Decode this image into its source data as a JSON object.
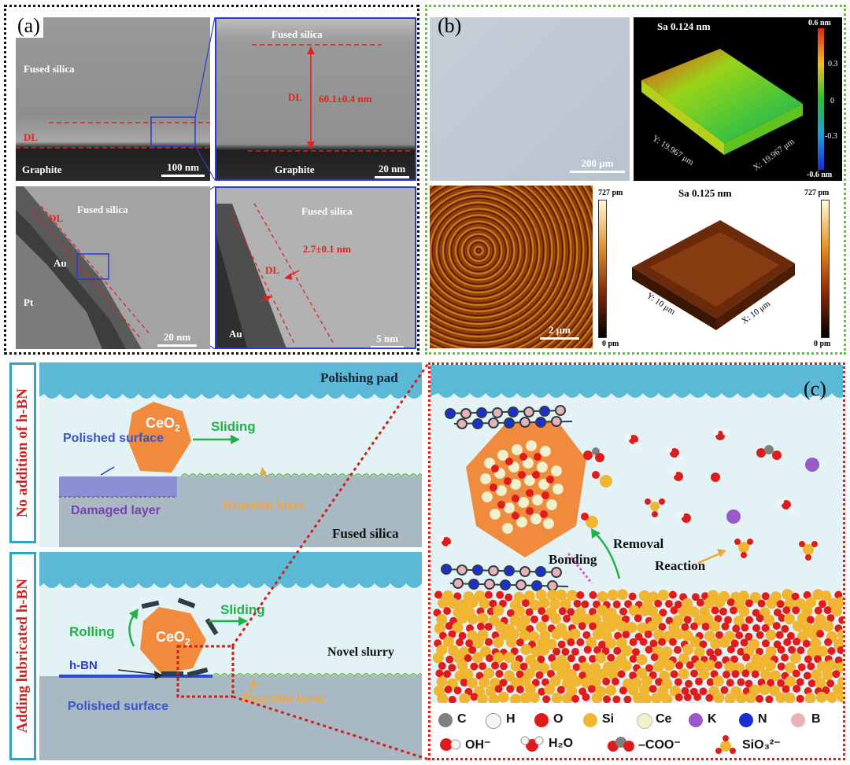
{
  "panel_a": {
    "label": "(a)",
    "top_left": {
      "fused_silica": "Fused silica",
      "dl": "DL",
      "graphite": "Graphite",
      "scale": "100 nm"
    },
    "top_right": {
      "fused_silica": "Fused silica",
      "dl": "DL",
      "thickness": "60.1±0.4 nm",
      "graphite": "Graphite",
      "scale": "20 nm"
    },
    "bottom_left": {
      "dl": "DL",
      "fused_silica": "Fused silica",
      "au": "Au",
      "pt": "Pt",
      "scale": "20 nm"
    },
    "bottom_right": {
      "fused_silica": "Fused silica",
      "thickness": "2.7±0.1 nm",
      "dl": "DL",
      "au": "Au",
      "scale": "5 nm"
    }
  },
  "panel_b": {
    "label": "(b)",
    "optical_scale": "200 μm",
    "afm1": {
      "sa": "Sa 0.124 nm",
      "ticks": [
        "0.6 nm",
        "0.3",
        "0",
        "-0.3",
        "-0.6 nm"
      ],
      "y_axis": "Y: 19.967 μm",
      "x_axis": "X: 19.967 μm"
    },
    "afm2_scale": "2 μm",
    "colorbar1": {
      "top": "727 pm",
      "bottom": "0 pm"
    },
    "afm3": {
      "sa": "Sa 0.125 nm",
      "y_axis": "Y: 10 μm",
      "x_axis": "X: 10 μm"
    },
    "colorbar2": {
      "top": "727 pm",
      "bottom": "0 pm"
    }
  },
  "panel_top_schematic": {
    "side_title": "No addition of h-BN",
    "polishing_pad": "Polishing pad",
    "ceo2": "CeO",
    "ceo2_sub": "2",
    "sliding": "Sliding",
    "polished_surface": "Polished surface",
    "reaction_layer": "Reaction layer",
    "damaged_layer": "Damaged layer",
    "fused_silica": "Fused silica"
  },
  "panel_bottom_schematic": {
    "side_title": "Adding lubricated h-BN",
    "rolling": "Rolling",
    "ceo2": "CeO",
    "ceo2_sub": "2",
    "sliding": "Sliding",
    "novel_slurry": "Novel slurry",
    "hbn": "h-BN",
    "polished_surface": "Polished surface",
    "reaction_layer": "Reaction layer"
  },
  "panel_c": {
    "label": "(c)",
    "removal": "Removal",
    "bonding": "Bonding",
    "reaction": "Reaction",
    "legend_atoms": [
      "C",
      "H",
      "O",
      "Si",
      "Ce",
      "K",
      "N",
      "B"
    ],
    "legend_molecules": [
      "OH⁻",
      "H₂O",
      "–COO⁻",
      "SiO₃²⁻"
    ]
  },
  "colors": {
    "tem_gray": "#8c8c8c",
    "annotation_red": "#e0231c",
    "pad_blue": "#5bb8d6",
    "slurry": "#e3f3f5",
    "silica": "#a8b9c4",
    "ceo2": "#f08a3c",
    "frame_teal": "#2fa3c0",
    "arrow_green": "#22b04b",
    "c_atom": "#7f7f7f",
    "h_atom": "#f4f4f4",
    "o_atom": "#e01b1b",
    "si_atom": "#f0b531",
    "ce_atom": "#f3f0cc",
    "k_atom": "#9b58c8",
    "n_atom": "#1b2fd8",
    "b_atom": "#e8b2b6"
  }
}
